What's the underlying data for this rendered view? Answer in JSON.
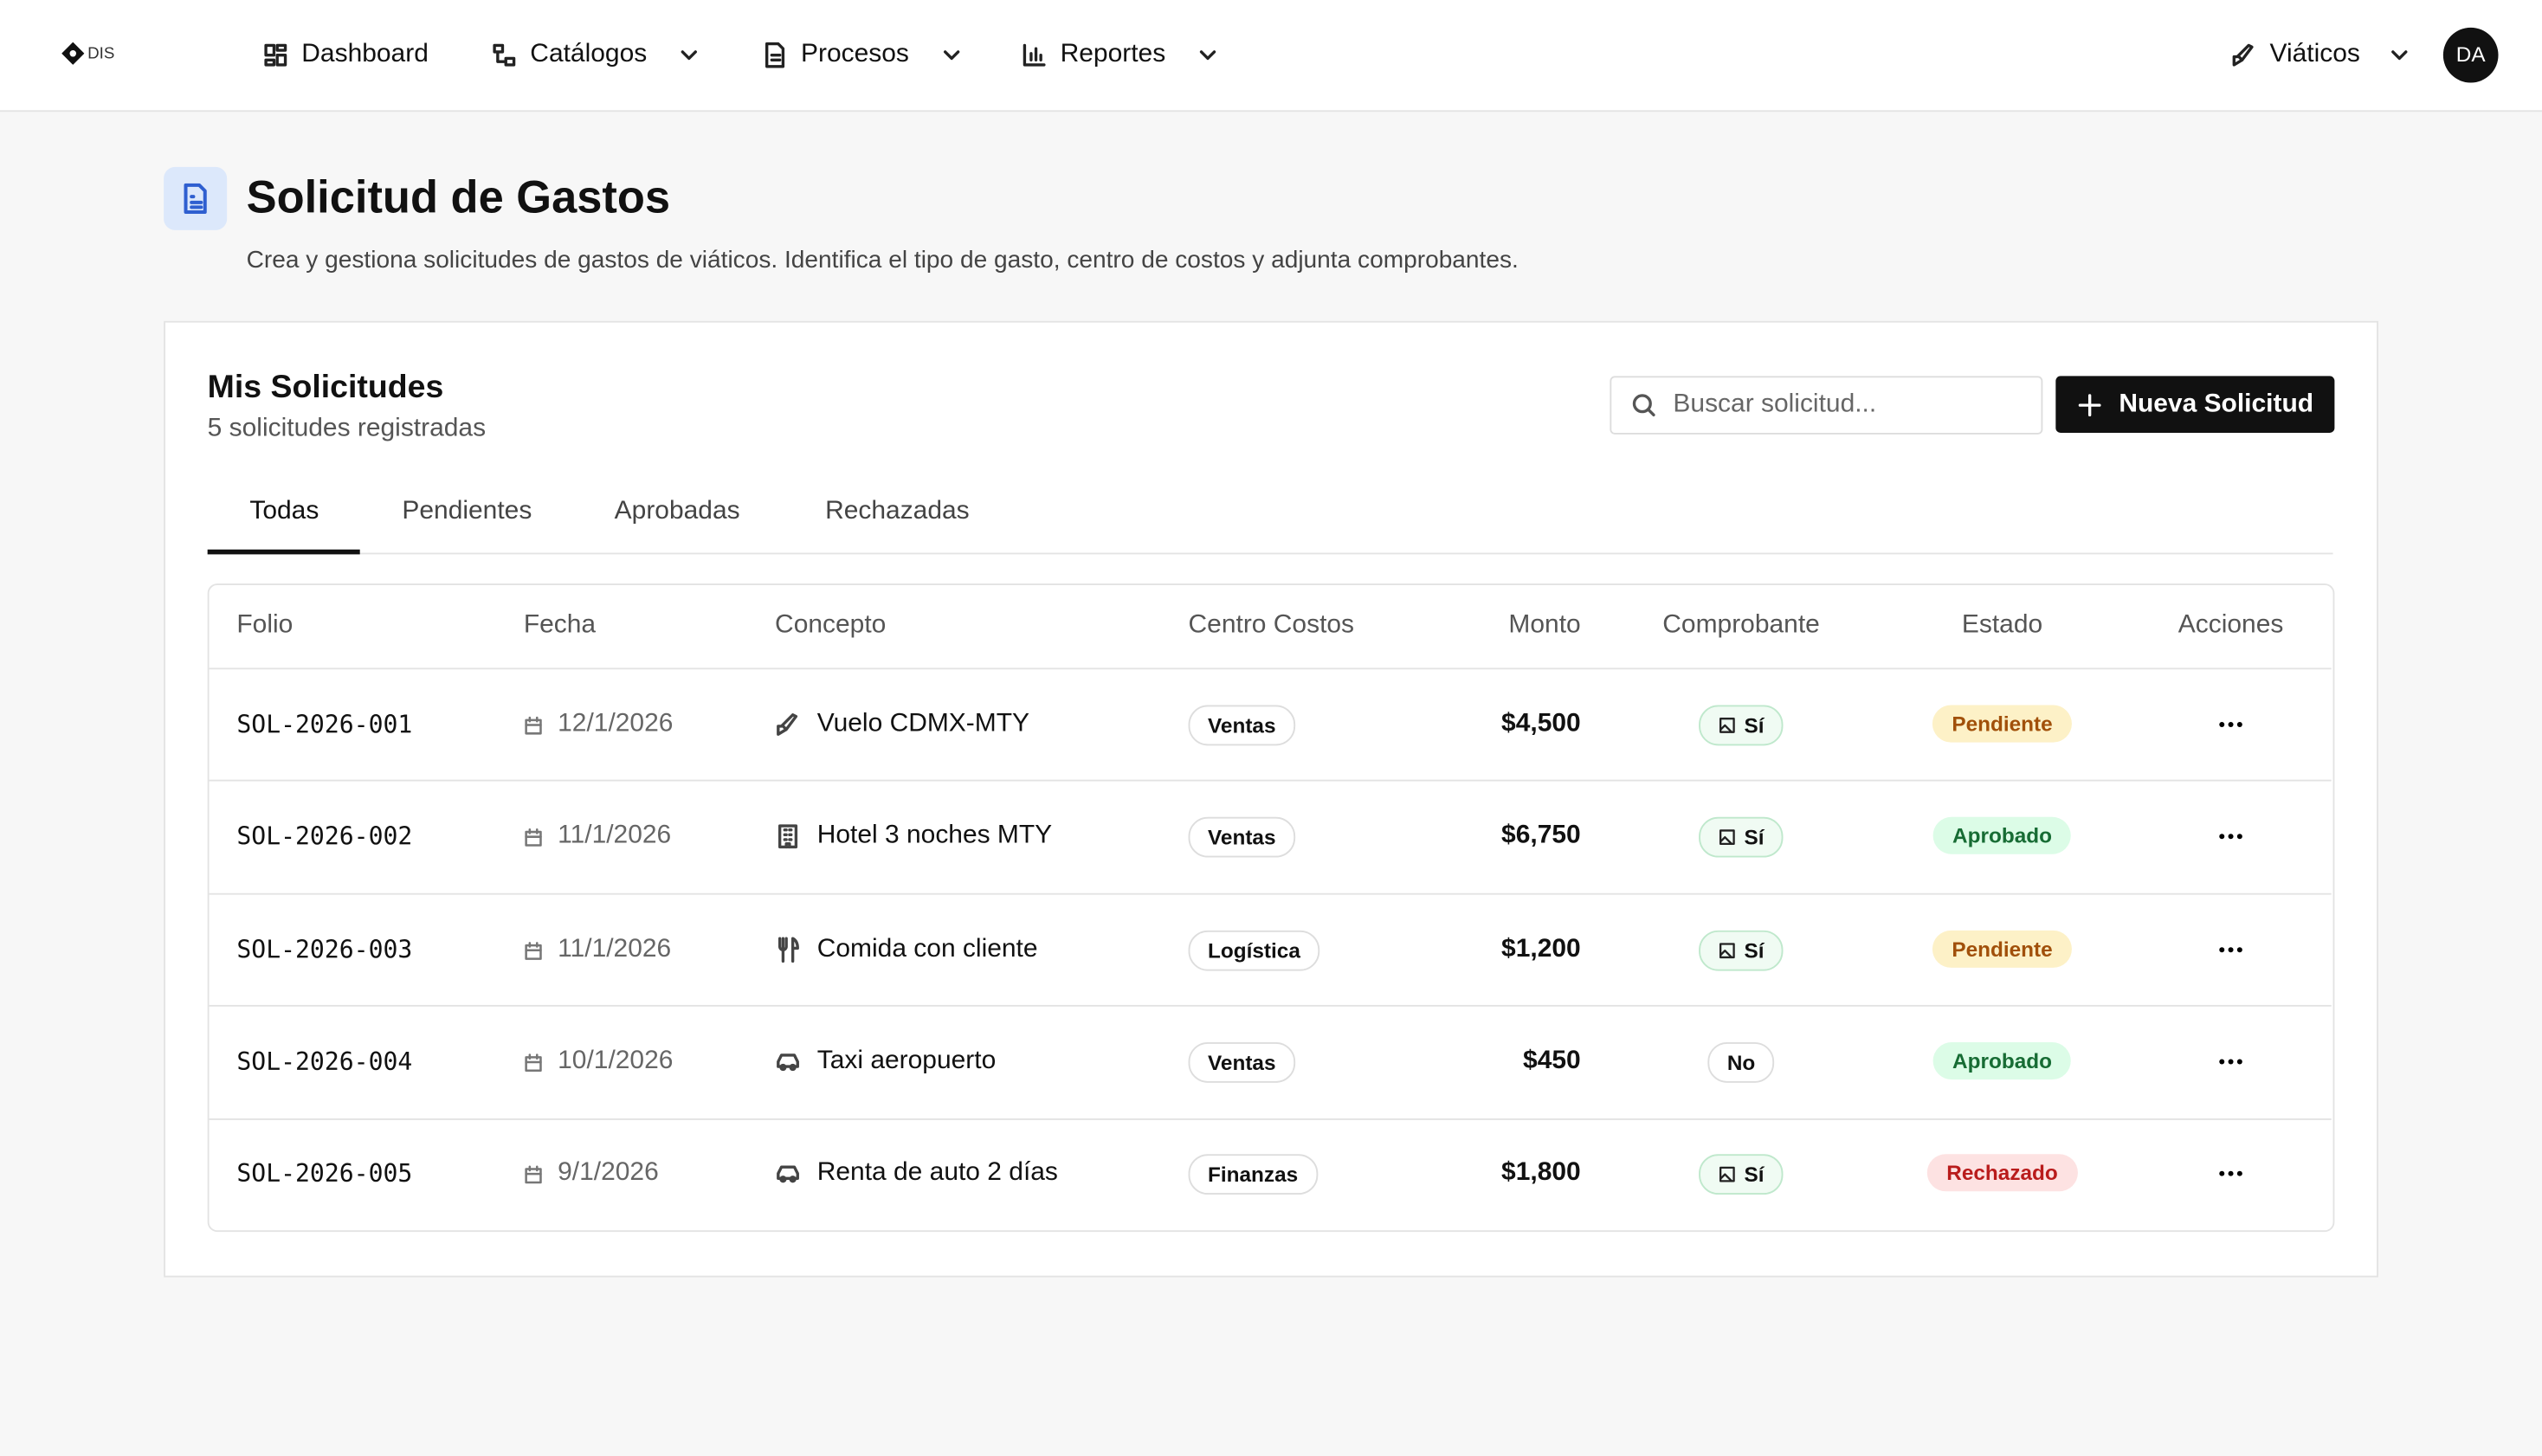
{
  "nav": {
    "logo": "DIS",
    "items": [
      "Dashboard",
      "Catálogos",
      "Procesos",
      "Reportes"
    ],
    "module": "Viáticos",
    "avatar": "DA"
  },
  "header": {
    "title": "Solicitud de Gastos",
    "description": "Crea y gestiona solicitudes de gastos de viáticos. Identifica el tipo de gasto, centro de costos y adjunta comprobantes."
  },
  "card": {
    "title": "Mis Solicitudes",
    "subtitle": "5 solicitudes registradas",
    "search_placeholder": "Buscar solicitud...",
    "button": "Nueva Solicitud",
    "tabs": [
      "Todas",
      "Pendientes",
      "Aprobadas",
      "Rechazadas"
    ],
    "table": {
      "columns": [
        "Folio",
        "Fecha",
        "Concepto",
        "Centro Costos",
        "Monto",
        "Comprobante",
        "Estado",
        "Acciones"
      ],
      "rows": [
        [
          "SOL-2026-001",
          "12/1/2026",
          "Vuelo CDMX-MTY",
          "Ventas",
          "$4,500",
          "Sí",
          "Pendiente"
        ],
        [
          "SOL-2026-002",
          "11/1/2026",
          "Hotel 3 noches MTY",
          "Ventas",
          "$6,750",
          "Sí",
          "Aprobado"
        ],
        [
          "SOL-2026-003",
          "11/1/2026",
          "Comida con cliente",
          "Logística",
          "$1,200",
          "Sí",
          "Pendiente"
        ],
        [
          "SOL-2026-004",
          "10/1/2026",
          "Taxi aeropuerto",
          "Ventas",
          "$450",
          "No",
          "Aprobado"
        ],
        [
          "SOL-2026-005",
          "9/1/2026",
          "Renta de auto 2 días",
          "Finanzas",
          "$1,800",
          "Sí",
          "Rechazado"
        ]
      ]
    }
  }
}
